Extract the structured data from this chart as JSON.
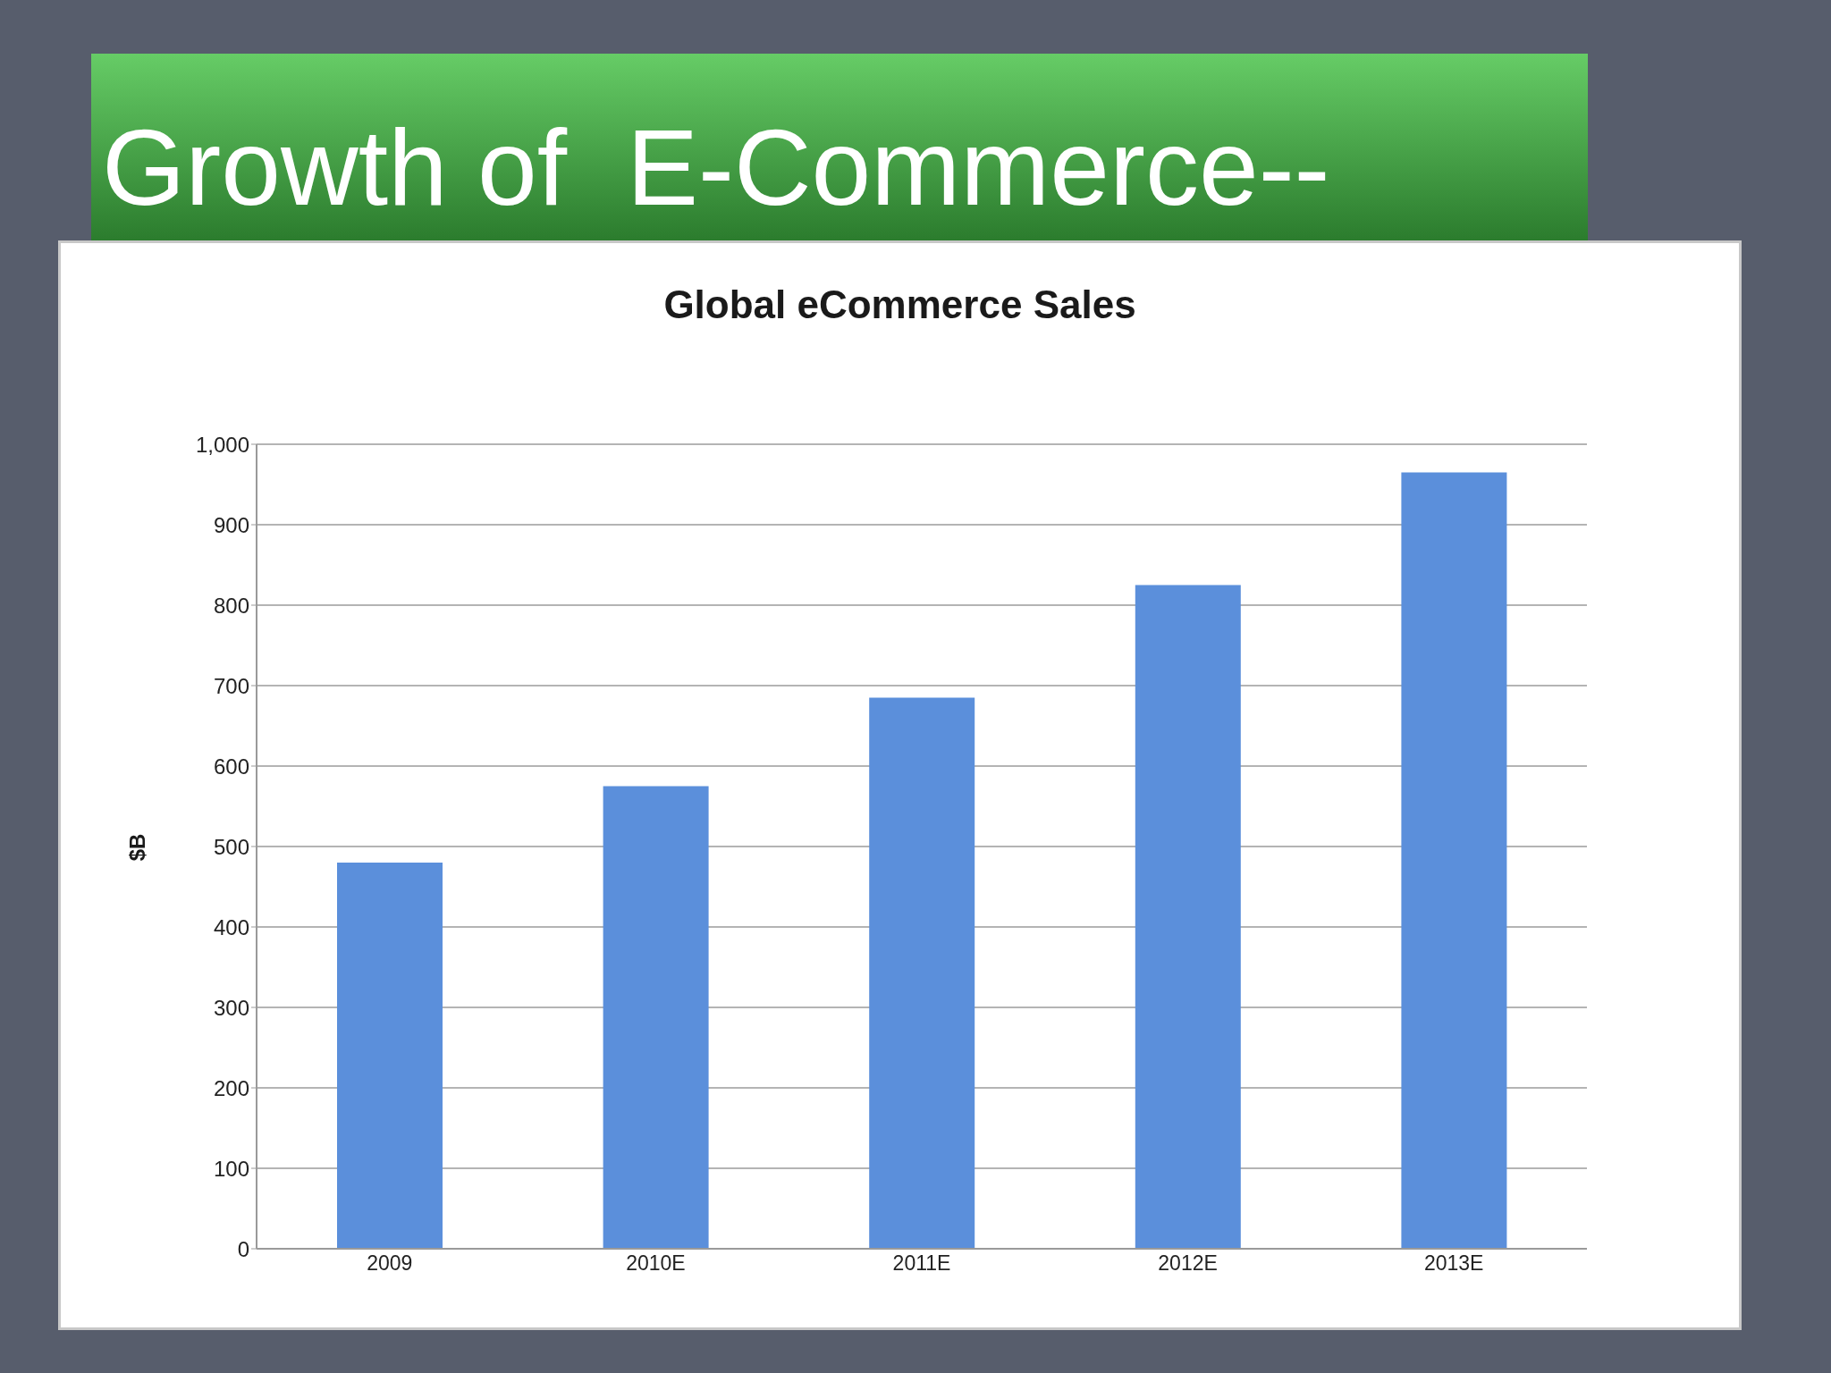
{
  "chart_data": {
    "type": "bar",
    "title": "Growth of  E-Commerce--",
    "subtitle": "Global eCommerce Sales",
    "ylabel": "$B",
    "categories": [
      "2009",
      "2010E",
      "2011E",
      "2012E",
      "2013E"
    ],
    "values": [
      480,
      575,
      685,
      825,
      965
    ],
    "color": "#5b8fdb",
    "ylim": [
      0,
      1000
    ],
    "yticks": [
      0,
      100,
      200,
      300,
      400,
      500,
      600,
      700,
      800,
      900,
      {
        "value": 1000,
        "label": "1,000"
      }
    ],
    "grid": "y"
  }
}
